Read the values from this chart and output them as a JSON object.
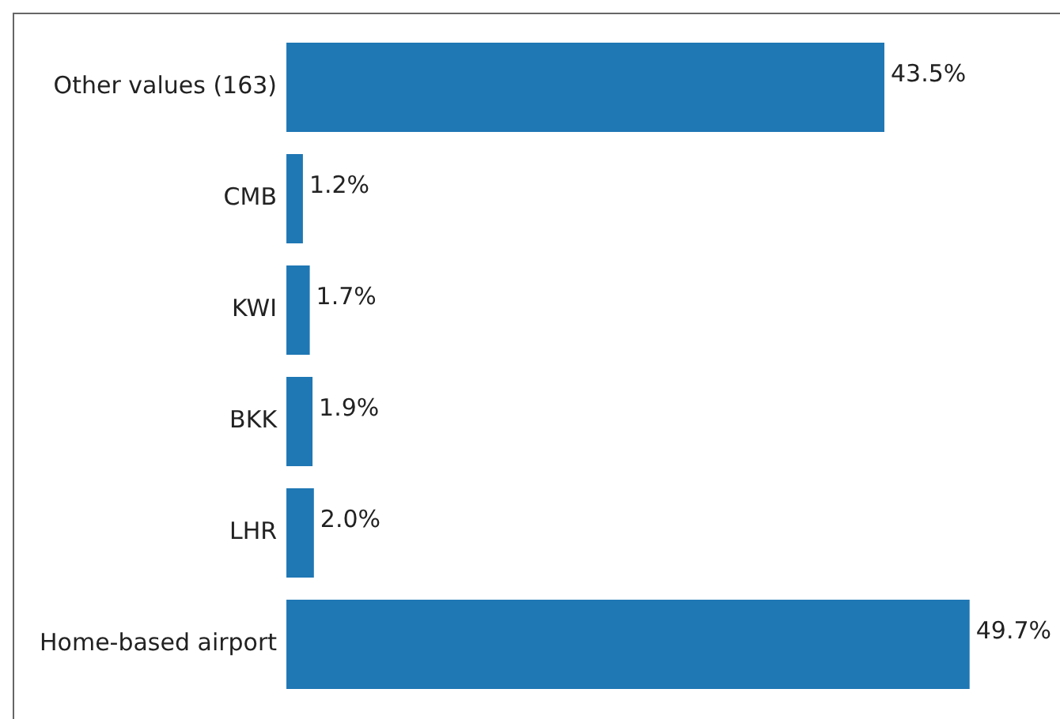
{
  "chart_data": {
    "type": "bar",
    "orientation": "horizontal",
    "categories": [
      "Other values (163)",
      "CMB",
      "KWI",
      "BKK",
      "LHR",
      "Home-based airport"
    ],
    "values": [
      43.5,
      1.2,
      1.7,
      1.9,
      2.0,
      49.7
    ],
    "value_labels": [
      "43.5%",
      "1.2%",
      "1.7%",
      "1.9%",
      "2.0%",
      "49.7%"
    ],
    "color": "#1f77b4"
  }
}
